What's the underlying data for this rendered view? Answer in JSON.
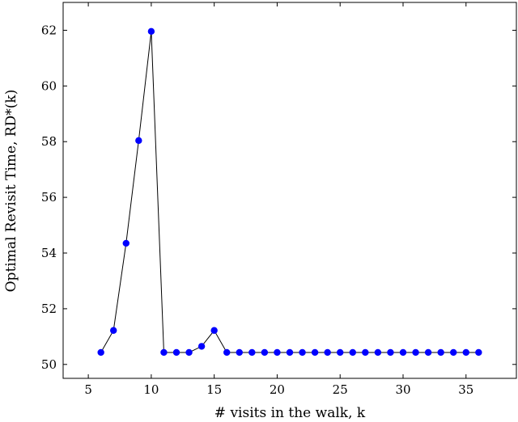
{
  "chart_data": {
    "type": "line",
    "title": "",
    "xlabel": "# visits in the walk, k",
    "ylabel": "Optimal Revisit Time, RD*(k)",
    "xlim": [
      3,
      39
    ],
    "ylim": [
      49.5,
      63
    ],
    "xticks": [
      5,
      10,
      15,
      20,
      25,
      30,
      35
    ],
    "yticks": [
      50,
      52,
      54,
      56,
      58,
      60,
      62
    ],
    "grid": false,
    "legend": "none",
    "series": [
      {
        "x": [
          6,
          7,
          8,
          9,
          10,
          11,
          12,
          13,
          14,
          15,
          16,
          17,
          18,
          19,
          20,
          21,
          22,
          23,
          24,
          25,
          26,
          27,
          28,
          29,
          30,
          31,
          32,
          33,
          34,
          35,
          36
        ],
        "y": [
          50.43,
          51.22,
          54.35,
          58.04,
          61.96,
          50.43,
          50.43,
          50.43,
          50.65,
          51.22,
          50.43,
          50.43,
          50.43,
          50.43,
          50.43,
          50.43,
          50.43,
          50.43,
          50.43,
          50.43,
          50.43,
          50.43,
          50.43,
          50.43,
          50.43,
          50.43,
          50.43,
          50.43,
          50.43,
          50.43,
          50.43
        ],
        "line_color": "#000000",
        "marker_color": "#0000ff"
      }
    ]
  }
}
